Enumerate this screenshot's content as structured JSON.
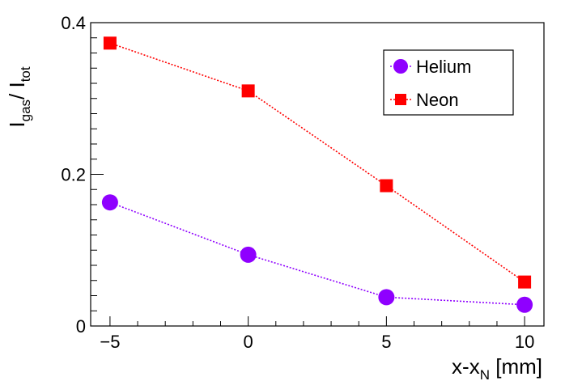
{
  "chart_data": {
    "type": "scatter",
    "x": [
      -5,
      0,
      5,
      10
    ],
    "xlim": [
      -5.7,
      10.7
    ],
    "ylim": [
      0,
      0.4
    ],
    "x_ticks": [
      -5,
      0,
      5,
      10
    ],
    "x_tick_labels": [
      "−5",
      "0",
      "5",
      "10"
    ],
    "y_ticks": [
      0,
      0.2,
      0.4
    ],
    "y_tick_labels": [
      "0",
      "0.2",
      "0.4"
    ],
    "xlabel": {
      "main": "x-x",
      "sub": "N",
      "rest": " [mm]"
    },
    "ylabel": {
      "main1": "I",
      "sub1": "gas",
      "mid": "/ I",
      "sub2": "tot"
    },
    "legend_position": "top-right",
    "grid": false,
    "series": [
      {
        "name": "Helium",
        "marker": "circle",
        "color": "#8f00ff",
        "line": "dotted",
        "values": [
          0.163,
          0.094,
          0.038,
          0.028
        ]
      },
      {
        "name": "Neon",
        "marker": "square",
        "color": "#ff0000",
        "line": "dotted",
        "values": [
          0.373,
          0.31,
          0.185,
          0.058
        ]
      }
    ]
  }
}
